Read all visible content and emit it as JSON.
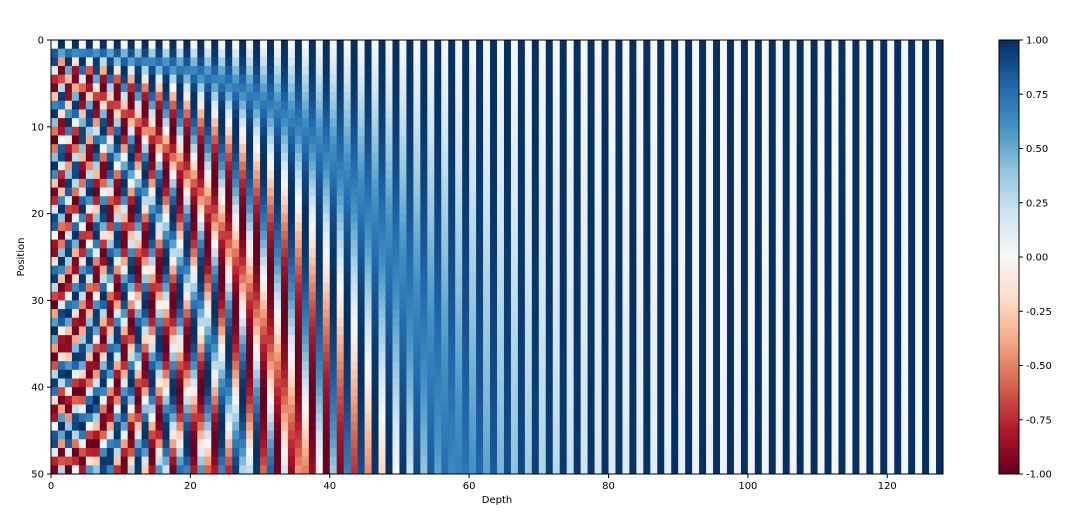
{
  "chart_data": {
    "type": "heatmap",
    "title": "",
    "xlabel": "Depth",
    "ylabel": "Position",
    "xlim": [
      0,
      128
    ],
    "ylim": [
      50,
      0
    ],
    "x_ticks": [
      "0",
      "20",
      "40",
      "60",
      "80",
      "100",
      "120"
    ],
    "x_tick_values": [
      0,
      20,
      40,
      60,
      80,
      100,
      120
    ],
    "y_ticks": [
      "0",
      "10",
      "20",
      "30",
      "40",
      "50"
    ],
    "y_tick_values": [
      0,
      10,
      20,
      30,
      40,
      50
    ],
    "rows": 50,
    "columns": 128,
    "values_description_source": "sinusoidal positional encoding: even depth sin, odd depth cos",
    "colormap": "RdBu",
    "colormap_stops": [
      "#67001f",
      "#b2182b",
      "#d6604d",
      "#f4a582",
      "#fddbc7",
      "#f7f7f7",
      "#d1e5f0",
      "#92c5de",
      "#4393c3",
      "#2166ac",
      "#053061"
    ],
    "vmin": -1.0,
    "vmax": 1.0,
    "colorbar_ticks": [
      "-1.00",
      "-0.75",
      "-0.50",
      "-0.25",
      "0.00",
      "0.25",
      "0.50",
      "0.75",
      "1.00"
    ],
    "colorbar_tick_values": [
      -1,
      -0.75,
      -0.5,
      -0.25,
      0,
      0.25,
      0.5,
      0.75,
      1
    ],
    "grid": false
  }
}
